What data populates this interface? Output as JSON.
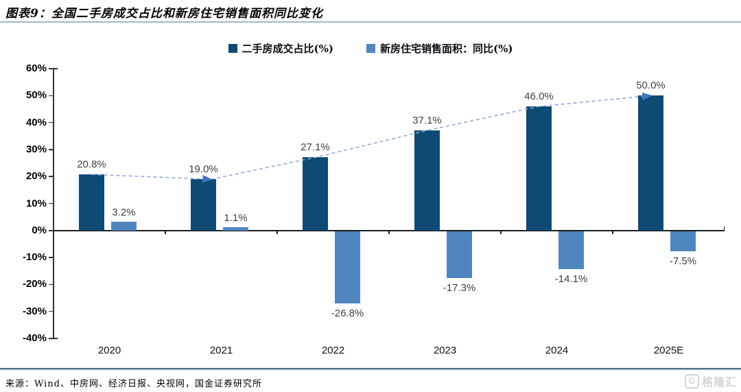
{
  "header": {
    "title": "图表9：全国二手房成交占比和新房住宅销售面积同比变化"
  },
  "legend": [
    {
      "label": "二手房成交占比(%)",
      "color": "#0e4a73"
    },
    {
      "label": "新房住宅销售面积：同比(%)",
      "color": "#4f86c0"
    }
  ],
  "chart_data": {
    "type": "bar",
    "categories": [
      "2020",
      "2021",
      "2022",
      "2023",
      "2024",
      "2025E"
    ],
    "series": [
      {
        "name": "二手房成交占比(%)",
        "color": "#0e4a73",
        "values": [
          20.8,
          19.0,
          27.1,
          37.1,
          46.0,
          50.0
        ]
      },
      {
        "name": "新房住宅销售面积：同比(%)",
        "color": "#4f86c0",
        "values": [
          3.2,
          1.1,
          -26.8,
          -17.3,
          -14.1,
          -7.5
        ]
      }
    ],
    "data_labels": {
      "series1": [
        "20.8%",
        "19.0%",
        "27.1%",
        "37.1%",
        "46.0%",
        "50.0%"
      ],
      "series2": [
        "3.2%",
        "1.1%",
        "-26.8%",
        "-17.3%",
        "-14.1%",
        "-7.5%"
      ]
    },
    "trendline": {
      "style": "dashed",
      "color": "#8faadc",
      "arrow_color": "#4472c4",
      "follows": "二手房成交占比(%)",
      "arrow_points": [
        "2021",
        "2025E"
      ]
    },
    "ylim": [
      -40,
      60
    ],
    "ytick_step": 10,
    "ytick_labels": [
      "60%",
      "50%",
      "40%",
      "30%",
      "20%",
      "10%",
      "0%",
      "-10%",
      "-20%",
      "-30%",
      "-40%"
    ],
    "grid": false,
    "legend_position": "top"
  },
  "footer": {
    "source": "来源：Wind、中房网、经济日报、央视网，国金证券研究所",
    "watermark": "格隆汇",
    "watermark_icon": "G"
  }
}
